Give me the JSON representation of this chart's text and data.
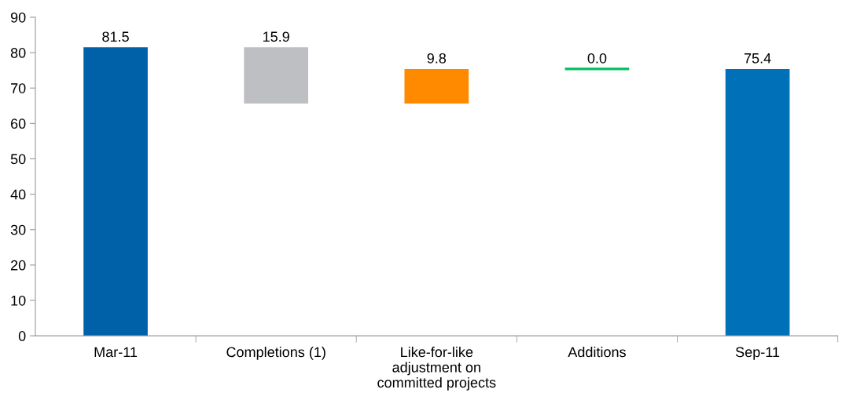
{
  "chart_data": {
    "type": "bar",
    "categories": [
      "Mar-11",
      "Completions (1)",
      "Like-for-like\nadjustment on\ncommitted projects",
      "Additions",
      "Sep-11"
    ],
    "values": [
      81.5,
      15.9,
      9.8,
      0.0,
      75.4
    ],
    "base": [
      0,
      65.6,
      65.6,
      75.4,
      0
    ],
    "colors": [
      "#0060a8",
      "#bebfc2",
      "#ff8a00",
      "#00c060",
      "#0070b8"
    ],
    "value_labels": [
      "81.5",
      "15.9",
      "9.8",
      "0.0",
      "75.4"
    ],
    "ylim": [
      0,
      90
    ],
    "yticks": [
      0,
      10,
      20,
      30,
      40,
      50,
      60,
      70,
      80,
      90
    ],
    "grid": false,
    "legend": false
  }
}
